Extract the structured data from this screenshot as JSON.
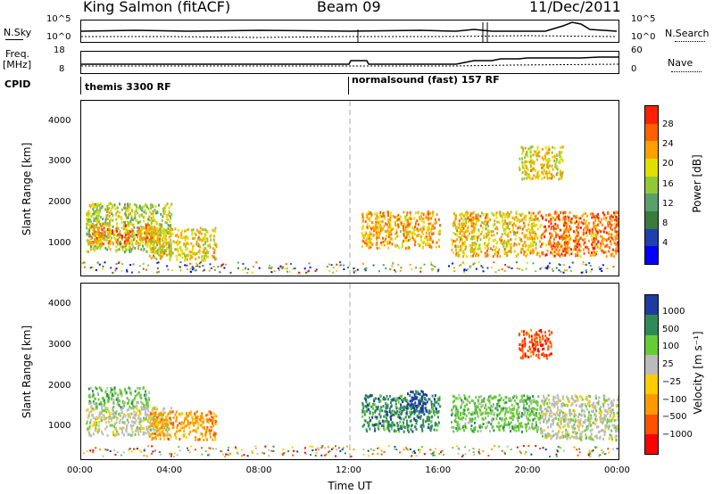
{
  "header": {
    "station": "King Salmon (fitACF)",
    "beam": "Beam 09",
    "date": "11/Dec/2011"
  },
  "param_panels": {
    "nsky_label": "N.Sky",
    "nsearch_label": "N.Search",
    "freq_label": "Freq.",
    "freq_unit": "[MHz]",
    "nave_label": "Nave",
    "cpid_label": "CPID",
    "left_ticks_top": [
      "10^5",
      "10^0"
    ],
    "right_ticks_top": [
      "10^5",
      "10^0"
    ],
    "left_ticks_freq": [
      "18",
      "8"
    ],
    "right_ticks_nave": [
      "60",
      "0"
    ]
  },
  "cpid": {
    "mode1": "themis 3300 RF",
    "mode2": "normalsound (fast) 157 RF"
  },
  "colors": {
    "power_scale": [
      "#0000ff",
      "#2040b0",
      "#3a7a3a",
      "#5aa06a",
      "#90c838",
      "#e0e000",
      "#ffa000",
      "#ff6000",
      "#ff2000"
    ],
    "velocity_scale": [
      "#ff0000",
      "#ff5000",
      "#ff9900",
      "#ffcc00",
      "#bbbbbb",
      "#66cc33",
      "#2e8b57",
      "#1e3ca0"
    ]
  },
  "chart_data": [
    {
      "type": "heatmap",
      "name": "Power",
      "ylabel": "Slant Range [km]",
      "yticks": [
        "1000",
        "2000",
        "3000",
        "4000"
      ],
      "ylim": [
        200,
        4500
      ],
      "xlim": [
        0,
        24
      ],
      "colorbar_label": "Power [dB]",
      "colorbar_ticks": [
        "4",
        "8",
        "12",
        "16",
        "20",
        "24",
        "28"
      ],
      "regions": [
        {
          "t0": 0.2,
          "t1": 4.0,
          "r0": 800,
          "r1": 2000,
          "level": 0.6
        },
        {
          "t0": 0.3,
          "t1": 3.5,
          "r0": 1000,
          "r1": 1500,
          "level": 0.85
        },
        {
          "t0": 3.0,
          "t1": 6.0,
          "r0": 600,
          "r1": 1400,
          "level": 0.7
        },
        {
          "t0": 12.5,
          "t1": 16.0,
          "r0": 900,
          "r1": 1800,
          "level": 0.8
        },
        {
          "t0": 16.5,
          "t1": 20.5,
          "r0": 700,
          "r1": 1800,
          "level": 0.75
        },
        {
          "t0": 19.5,
          "t1": 21.5,
          "r0": 2600,
          "r1": 3400,
          "level": 0.7
        },
        {
          "t0": 20.5,
          "t1": 24.0,
          "r0": 700,
          "r1": 1800,
          "level": 0.9
        }
      ]
    },
    {
      "type": "heatmap",
      "name": "Velocity",
      "ylabel": "Slant Range [km]",
      "yticks": [
        "1000",
        "2000",
        "3000",
        "4000"
      ],
      "ylim": [
        200,
        4500
      ],
      "xlim": [
        0,
        24
      ],
      "xlabel": "Time UT",
      "xticks": [
        "00:00",
        "04:00",
        "08:00",
        "12:00",
        "16:00",
        "20:00",
        "00:00"
      ],
      "colorbar_label": "Velocity [m s⁻¹]",
      "colorbar_ticks": [
        "1000",
        "500",
        "100",
        "25",
        "−25",
        "−100",
        "−500",
        "−1000"
      ],
      "regions": [
        {
          "t0": 0.2,
          "t1": 4.0,
          "r0": 800,
          "r1": 1500,
          "level": 4
        },
        {
          "t0": 0.3,
          "t1": 3.0,
          "r0": 1500,
          "r1": 2000,
          "level": 5
        },
        {
          "t0": 3.0,
          "t1": 6.0,
          "r0": 700,
          "r1": 1400,
          "level": 2
        },
        {
          "t0": 12.5,
          "t1": 16.0,
          "r0": 900,
          "r1": 1800,
          "level": 6
        },
        {
          "t0": 14.5,
          "t1": 15.5,
          "r0": 1400,
          "r1": 1900,
          "level": 7
        },
        {
          "t0": 16.5,
          "t1": 20.5,
          "r0": 900,
          "r1": 1800,
          "level": 5
        },
        {
          "t0": 19.5,
          "t1": 21.0,
          "r0": 2700,
          "r1": 3400,
          "level": 1
        },
        {
          "t0": 20.5,
          "t1": 24.0,
          "r0": 700,
          "r1": 1800,
          "level": 4
        }
      ]
    }
  ]
}
